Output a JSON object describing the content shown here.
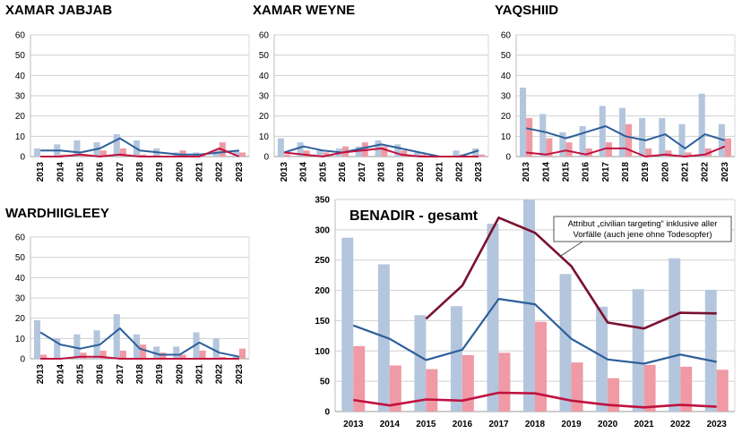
{
  "colors": {
    "bar_a": "#b4c6dd",
    "bar_b": "#ef9aa5",
    "line_a": "#2d5f9a",
    "line_b": "#c0123f",
    "line_c": "#7a1030",
    "grid": "#d0d0d0"
  },
  "chart_data": [
    {
      "type": "bar+line",
      "title": "XAMAR JABJAB",
      "categories": [
        "2013",
        "2014",
        "2015",
        "2016",
        "2017",
        "2018",
        "2019",
        "2020",
        "2021",
        "2022",
        "2023"
      ],
      "ylim": [
        0,
        60
      ],
      "yticks": [
        "0",
        "10",
        "20",
        "30",
        "40",
        "50",
        "60"
      ],
      "series": [
        {
          "name": "bars_blue",
          "kind": "bar",
          "values": [
            4,
            6,
            8,
            7,
            11,
            8,
            4,
            2,
            2,
            3,
            3
          ]
        },
        {
          "name": "bars_red",
          "kind": "bar",
          "values": [
            0,
            1,
            1,
            3,
            4,
            1,
            0,
            3,
            1,
            7,
            2
          ]
        },
        {
          "name": "line_blue",
          "kind": "line",
          "values": [
            3,
            3,
            2,
            4,
            9,
            3,
            2,
            1,
            1,
            2,
            3
          ]
        },
        {
          "name": "line_red",
          "kind": "line",
          "values": [
            0,
            0,
            1,
            0,
            1,
            0,
            0,
            0,
            0,
            4,
            0
          ]
        }
      ]
    },
    {
      "type": "bar+line",
      "title": "XAMAR WEYNE",
      "categories": [
        "2013",
        "2014",
        "2015",
        "2016",
        "2017",
        "2018",
        "2019",
        "2020",
        "2021",
        "2022",
        "2023"
      ],
      "ylim": [
        0,
        60
      ],
      "yticks": [
        "0",
        "10",
        "20",
        "30",
        "40",
        "50",
        "60"
      ],
      "series": [
        {
          "name": "bars_blue",
          "kind": "bar",
          "values": [
            9,
            7,
            3,
            4,
            5,
            8,
            6,
            2,
            0,
            3,
            4
          ]
        },
        {
          "name": "bars_red",
          "kind": "bar",
          "values": [
            1,
            3,
            2,
            5,
            7,
            5,
            3,
            1,
            0,
            1,
            1
          ]
        },
        {
          "name": "line_blue",
          "kind": "line",
          "values": [
            2,
            5,
            3,
            2,
            4,
            6,
            4,
            2,
            0,
            0,
            3
          ]
        },
        {
          "name": "line_red",
          "kind": "line",
          "values": [
            2,
            1,
            0,
            2,
            3,
            4,
            1,
            0,
            0,
            0,
            0
          ]
        }
      ]
    },
    {
      "type": "bar+line",
      "title": "YAQSHIID",
      "categories": [
        "2013",
        "2014",
        "2015",
        "2016",
        "2017",
        "2018",
        "2019",
        "2020",
        "2021",
        "2022",
        "2023"
      ],
      "ylim": [
        0,
        60
      ],
      "yticks": [
        "0",
        "10",
        "20",
        "30",
        "40",
        "50",
        "60"
      ],
      "series": [
        {
          "name": "bars_blue",
          "kind": "bar",
          "values": [
            34,
            21,
            12,
            15,
            25,
            24,
            19,
            19,
            16,
            31,
            16
          ]
        },
        {
          "name": "bars_red",
          "kind": "bar",
          "values": [
            19,
            9,
            7,
            4,
            7,
            16,
            4,
            3,
            2,
            4,
            9
          ]
        },
        {
          "name": "line_blue",
          "kind": "line",
          "values": [
            14,
            12,
            9,
            12,
            15,
            10,
            8,
            11,
            4,
            11,
            8
          ]
        },
        {
          "name": "line_red",
          "kind": "line",
          "values": [
            2,
            1,
            3,
            1,
            4,
            4,
            0,
            1,
            0,
            1,
            5
          ]
        }
      ]
    },
    {
      "type": "bar+line",
      "title": "WARDHIIGLEEY",
      "categories": [
        "2013",
        "2014",
        "2015",
        "2016",
        "2017",
        "2018",
        "2019",
        "2020",
        "2021",
        "2022",
        "2023"
      ],
      "ylim": [
        0,
        60
      ],
      "yticks": [
        "0",
        "10",
        "20",
        "30",
        "40",
        "50",
        "60"
      ],
      "series": [
        {
          "name": "bars_blue",
          "kind": "bar",
          "values": [
            19,
            10,
            12,
            14,
            22,
            12,
            6,
            6,
            13,
            10,
            1
          ]
        },
        {
          "name": "bars_red",
          "kind": "bar",
          "values": [
            2,
            0,
            3,
            4,
            4,
            7,
            3,
            2,
            4,
            1,
            5
          ]
        },
        {
          "name": "line_blue",
          "kind": "line",
          "values": [
            13,
            7,
            5,
            7,
            15,
            5,
            2,
            2,
            8,
            3,
            1
          ]
        },
        {
          "name": "line_red",
          "kind": "line",
          "values": [
            0,
            0,
            1,
            1,
            0,
            0,
            0,
            0,
            0,
            0,
            0
          ]
        }
      ]
    },
    {
      "type": "bar+line",
      "title": "BENADIR - gesamt",
      "categories": [
        "2013",
        "2014",
        "2015",
        "2016",
        "2017",
        "2018",
        "2019",
        "2020",
        "2021",
        "2022",
        "2023"
      ],
      "ylim": [
        0,
        350
      ],
      "yticks": [
        "0",
        "50",
        "100",
        "150",
        "200",
        "250",
        "300",
        "350"
      ],
      "annotation": "Attribut „civilian targeting“ inklusive aller Vorfälle (auch jene ohne Todesopfer)",
      "annotation_lines": [
        "Attribut „civilian targeting“ inklusive aller",
        "Vorfälle (auch jene ohne Todesopfer)"
      ],
      "series": [
        {
          "name": "bars_blue",
          "kind": "bar",
          "values": [
            287,
            243,
            159,
            174,
            310,
            350,
            227,
            173,
            202,
            253,
            201
          ]
        },
        {
          "name": "bars_red",
          "kind": "bar",
          "values": [
            108,
            76,
            70,
            93,
            97,
            148,
            81,
            55,
            77,
            74,
            69
          ]
        },
        {
          "name": "line_blue",
          "kind": "line",
          "values": [
            142,
            120,
            85,
            102,
            186,
            177,
            120,
            86,
            79,
            94,
            82
          ]
        },
        {
          "name": "line_red",
          "kind": "line",
          "values": [
            19,
            10,
            20,
            18,
            31,
            30,
            18,
            11,
            7,
            11,
            8
          ]
        },
        {
          "name": "line_civilian_targeting",
          "kind": "line",
          "values": [
            null,
            null,
            153,
            208,
            320,
            295,
            240,
            147,
            137,
            163,
            162
          ]
        }
      ]
    }
  ]
}
